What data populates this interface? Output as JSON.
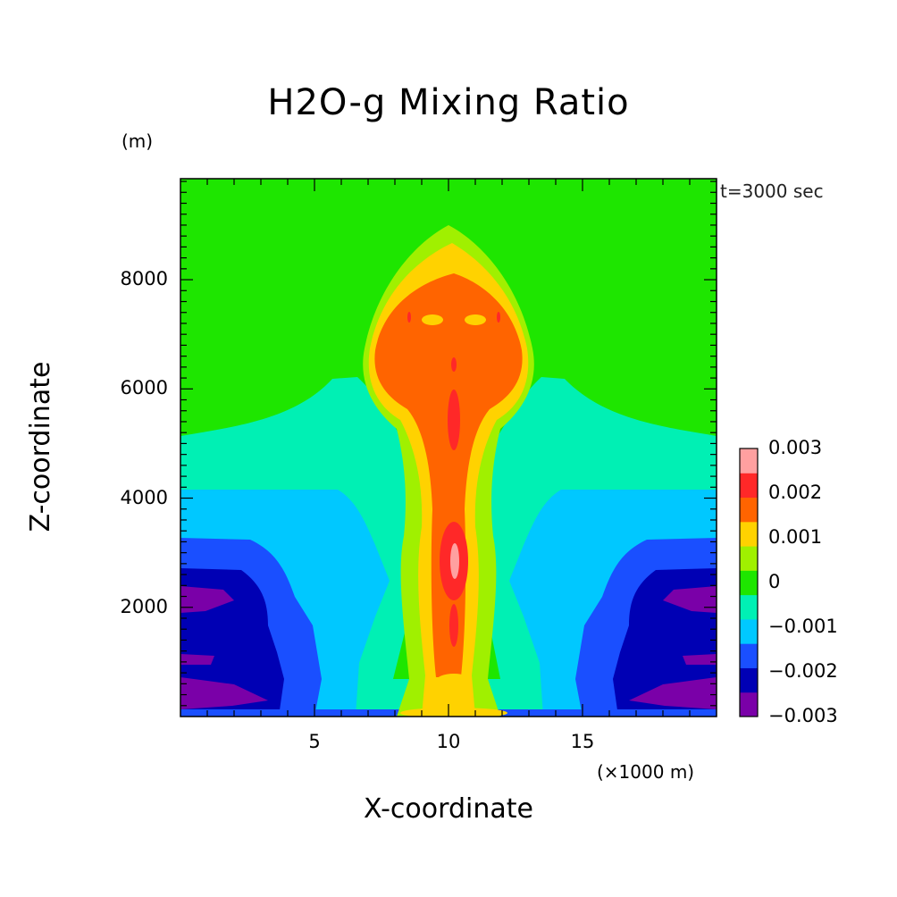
{
  "chart_data": {
    "type": "heatmap",
    "title": "H2O-g Mixing Ratio",
    "xlabel": "X-coordinate",
    "ylabel": "Z-coordinate",
    "x_unit": "(×1000 m)",
    "y_unit": "(m)",
    "annotation": "t=3000 sec",
    "xlim": [
      0,
      20
    ],
    "ylim": [
      0,
      9850
    ],
    "x_ticks": [
      5,
      10,
      15
    ],
    "y_ticks": [
      2000,
      4000,
      6000,
      8000
    ],
    "colorbar": {
      "levels": [
        -0.003,
        -0.0025,
        -0.002,
        -0.0015,
        -0.001,
        -0.0005,
        0,
        0.0005,
        0.001,
        0.0015,
        0.002,
        0.0025,
        0.003
      ],
      "labels": [
        "0.003",
        "0.002",
        "0.001",
        "0",
        "−0.001",
        "−0.002",
        "−0.003"
      ],
      "label_values": [
        0.003,
        0.002,
        0.001,
        0,
        -0.001,
        -0.002,
        -0.003
      ],
      "colors": [
        "#7a00a8",
        "#0000b4",
        "#1a4fff",
        "#00c8ff",
        "#00f0b4",
        "#1ee600",
        "#a0f000",
        "#ffd200",
        "#ff6400",
        "#ff2828",
        "#ffa0a0"
      ]
    },
    "features": [
      {
        "x": 10.2,
        "z": 3000,
        "value": 0.0027
      },
      {
        "x": 10.2,
        "z": 7200,
        "value": 0.0018
      }
    ]
  }
}
